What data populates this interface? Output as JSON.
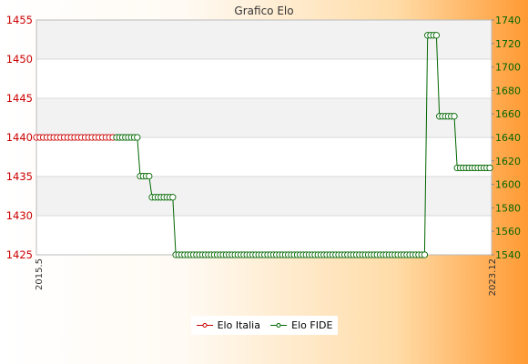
{
  "chart_data": {
    "type": "line",
    "title": "Grafico Elo",
    "legend_position": "bottom",
    "grid": true,
    "y_left": {
      "min": 1425,
      "max": 1455,
      "ticks": [
        1425,
        1430,
        1435,
        1440,
        1445,
        1450,
        1455
      ],
      "color": "#cc0000"
    },
    "y_right": {
      "min": 1540,
      "max": 1740,
      "ticks": [
        1540,
        1560,
        1580,
        1600,
        1620,
        1640,
        1660,
        1680,
        1700,
        1720,
        1740
      ],
      "color": "#006600"
    },
    "x_tick_label_first": "2015.5",
    "x_tick_label_last": "2023.12",
    "series": [
      {
        "name": "Elo Italia",
        "axis": "left",
        "color": "#cc0000",
        "values": [
          1440,
          1440,
          1440,
          1440,
          1440,
          1440,
          1440,
          1440,
          1440,
          1440,
          1440,
          1440,
          1440,
          1440,
          1440,
          1440,
          1440,
          1440,
          1440,
          1440,
          1440,
          1440,
          1440
        ]
      },
      {
        "name": "Elo FIDE",
        "axis": "right",
        "color": "#006600",
        "values": [
          1640,
          1640,
          1640,
          1640,
          1640,
          1640,
          1640,
          1640,
          1607,
          1607,
          1607,
          1607,
          1589,
          1589,
          1589,
          1589,
          1589,
          1589,
          1589,
          1589,
          1540,
          1540,
          1540,
          1540,
          1540,
          1540,
          1540,
          1540,
          1540,
          1540,
          1540,
          1540,
          1540,
          1540,
          1540,
          1540,
          1540,
          1540,
          1540,
          1540,
          1540,
          1540,
          1540,
          1540,
          1540,
          1540,
          1540,
          1540,
          1540,
          1540,
          1540,
          1540,
          1540,
          1540,
          1540,
          1540,
          1540,
          1540,
          1540,
          1540,
          1540,
          1540,
          1540,
          1540,
          1540,
          1540,
          1540,
          1540,
          1540,
          1540,
          1540,
          1540,
          1540,
          1540,
          1540,
          1540,
          1540,
          1540,
          1540,
          1540,
          1540,
          1540,
          1540,
          1540,
          1540,
          1540,
          1540,
          1540,
          1540,
          1540,
          1540,
          1540,
          1540,
          1540,
          1540,
          1540,
          1540,
          1540,
          1540,
          1540,
          1540,
          1540,
          1540,
          1540,
          1540,
          1727,
          1727,
          1727,
          1727,
          1658,
          1658,
          1658,
          1658,
          1658,
          1658,
          1614,
          1614,
          1614,
          1614,
          1614,
          1614,
          1614,
          1614,
          1614,
          1614,
          1614,
          1614
        ]
      }
    ]
  }
}
